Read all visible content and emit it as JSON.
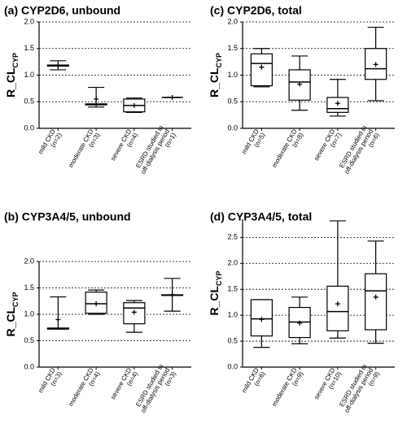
{
  "chart_data": [
    {
      "type": "box",
      "title": "(a) CYP2D6, unbound",
      "ylabel": "R_CL",
      "ylabel_sub": "CYP",
      "categories": [
        [
          "mild CKD",
          "(n=2)"
        ],
        [
          "moderate CKD",
          "(n=3)"
        ],
        [
          "severe CKD",
          "(n=4)"
        ],
        [
          "ESRD studied in",
          "off-dialysis period",
          "(n=1)"
        ]
      ],
      "boxes": [
        {
          "min": 1.1,
          "q1": 1.17,
          "median": 1.18,
          "q3": 1.19,
          "max": 1.27,
          "mean": 1.18
        },
        {
          "min": 0.4,
          "q1": 0.44,
          "median": 0.45,
          "q3": 0.46,
          "max": 0.77,
          "mean": 0.55
        },
        {
          "min": 0.3,
          "q1": 0.31,
          "median": 0.43,
          "q3": 0.55,
          "max": 0.57,
          "mean": 0.43
        },
        {
          "min": 0.58,
          "q1": 0.58,
          "median": 0.58,
          "q3": 0.58,
          "max": 0.58,
          "mean": 0.58
        }
      ],
      "ylim": [
        0,
        2.0
      ],
      "yticks": [
        {
          "value": 0,
          "label": "0.0"
        },
        0.5,
        {
          "value": 1,
          "label": "1.0"
        },
        1.5,
        {
          "value": 2,
          "label": "2.0"
        }
      ],
      "grid": true
    },
    {
      "type": "box",
      "title": "(c) CYP2D6, total",
      "ylabel": "R_CL",
      "ylabel_sub": "CYP",
      "categories": [
        [
          "mild CKD",
          "(n=5)"
        ],
        [
          "moderate CKD",
          "(n=8)"
        ],
        [
          "severe CKD",
          "(n=7)"
        ],
        [
          "ESRD studied in",
          "off-dialysis period",
          "(n=6)"
        ]
      ],
      "boxes": [
        {
          "min": 0.78,
          "q1": 0.8,
          "median": 1.22,
          "q3": 1.4,
          "max": 1.5,
          "mean": 1.15
        },
        {
          "min": 0.34,
          "q1": 0.53,
          "median": 0.87,
          "q3": 1.1,
          "max": 1.36,
          "mean": 0.83
        },
        {
          "min": 0.23,
          "q1": 0.3,
          "median": 0.37,
          "q3": 0.58,
          "max": 0.92,
          "mean": 0.47
        },
        {
          "min": 0.52,
          "q1": 0.92,
          "median": 1.12,
          "q3": 1.5,
          "max": 1.9,
          "mean": 1.2
        }
      ],
      "ylim": [
        0,
        2.0
      ],
      "yticks": [
        {
          "value": 0,
          "label": "0.0"
        },
        0.5,
        {
          "value": 1,
          "label": "1.0"
        },
        1.5,
        {
          "value": 2,
          "label": "2.0"
        }
      ],
      "grid": true
    },
    {
      "type": "box",
      "title": "(b) CYP3A4/5, unbound",
      "ylabel": "R_CL",
      "ylabel_sub": "CYP",
      "categories": [
        [
          "mild CKD",
          "(n=3)"
        ],
        [
          "moderate CKD",
          "(n=4)"
        ],
        [
          "severe CKD",
          "(n=4)"
        ],
        [
          "ESRD studied in",
          "off-dialysis period",
          "(n=3)"
        ]
      ],
      "boxes": [
        {
          "min": 0.72,
          "q1": 0.72,
          "median": 0.73,
          "q3": 0.74,
          "max": 1.33,
          "mean": 0.9
        },
        {
          "min": 1.0,
          "q1": 1.02,
          "median": 1.2,
          "q3": 1.42,
          "max": 1.46,
          "mean": 1.2
        },
        {
          "min": 0.66,
          "q1": 0.82,
          "median": 1.12,
          "q3": 1.22,
          "max": 1.26,
          "mean": 1.04
        },
        {
          "min": 1.06,
          "q1": 1.36,
          "median": 1.36,
          "q3": 1.37,
          "max": 1.68,
          "mean": 1.37
        }
      ],
      "ylim": [
        0,
        2.0
      ],
      "yticks": [
        {
          "value": 0,
          "label": "0.0"
        },
        0.5,
        {
          "value": 1,
          "label": "1.0"
        },
        1.5,
        {
          "value": 2,
          "label": "2.0"
        }
      ],
      "grid": true
    },
    {
      "type": "box",
      "title": "(d) CYP3A4/5, total",
      "ylabel": "R_CL",
      "ylabel_sub": "CYP",
      "categories": [
        [
          "mild CKD",
          "(n=6)"
        ],
        [
          "moderate CKD",
          "(n=9)"
        ],
        [
          "severe CKD",
          "(n=10)"
        ],
        [
          "ESRD studied in",
          "off-dialysis period",
          "(n=9)"
        ]
      ],
      "boxes": [
        {
          "min": 0.38,
          "q1": 0.6,
          "median": 0.93,
          "q3": 1.3,
          "max": 1.3,
          "mean": 0.92
        },
        {
          "min": 0.45,
          "q1": 0.57,
          "median": 0.87,
          "q3": 1.15,
          "max": 1.35,
          "mean": 0.85
        },
        {
          "min": 0.56,
          "q1": 0.7,
          "median": 1.07,
          "q3": 1.56,
          "max": 2.82,
          "mean": 1.22
        },
        {
          "min": 0.46,
          "q1": 0.72,
          "median": 1.47,
          "q3": 1.8,
          "max": 2.43,
          "mean": 1.35
        }
      ],
      "ylim": [
        0,
        2.85
      ],
      "yticks": [
        {
          "value": 0,
          "label": "0.0"
        },
        0.5,
        {
          "value": 1,
          "label": "1.0"
        },
        1.5,
        {
          "value": 2,
          "label": "2.0"
        },
        2.5
      ],
      "grid": true
    }
  ]
}
